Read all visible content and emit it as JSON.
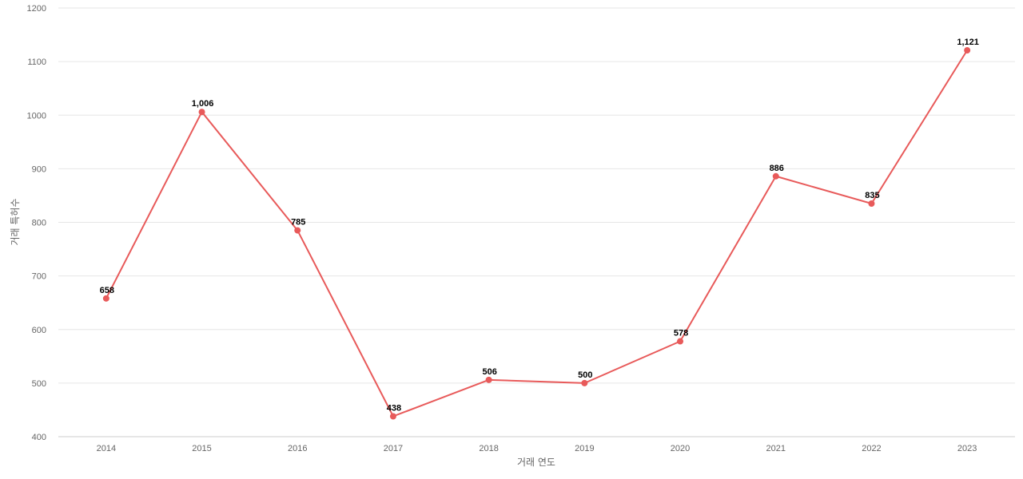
{
  "chart_data": {
    "type": "line",
    "x": [
      "2014",
      "2015",
      "2016",
      "2017",
      "2018",
      "2019",
      "2020",
      "2021",
      "2022",
      "2023"
    ],
    "series": [
      {
        "values": [
          658,
          1006,
          785,
          438,
          506,
          500,
          578,
          886,
          835,
          1121
        ],
        "labels": [
          "658",
          "1,006",
          "785",
          "438",
          "506",
          "500",
          "578",
          "886",
          "835",
          "1,121"
        ]
      }
    ],
    "xlabel": "거래 연도",
    "ylabel": "거래 특허수",
    "ylim": [
      400,
      1200
    ],
    "yticks": [
      400,
      500,
      600,
      700,
      800,
      900,
      1000,
      1100,
      1200
    ],
    "grid": true,
    "line_color": "#e85a5a"
  }
}
